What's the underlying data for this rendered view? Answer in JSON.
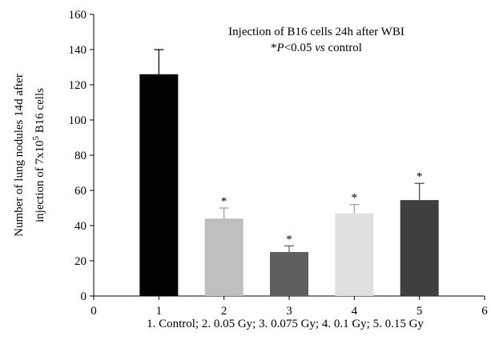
{
  "chart_data": {
    "type": "bar",
    "x": [
      1,
      2,
      3,
      4,
      5
    ],
    "values": [
      126,
      44,
      25,
      47,
      54.5
    ],
    "errors": [
      14,
      6,
      3.5,
      5,
      9.5
    ],
    "markers": [
      null,
      "*",
      "*",
      "*",
      "*"
    ],
    "colors": [
      "#000000",
      "#bfbfbf",
      "#5f5f5f",
      "#e0e0e0",
      "#3f3f3f"
    ],
    "xlim": [
      0,
      6
    ],
    "xticks": [
      0,
      1,
      2,
      3,
      4,
      5,
      6
    ],
    "ylim": [
      0,
      160
    ],
    "yticks": [
      0,
      20,
      40,
      60,
      80,
      100,
      120,
      140,
      160
    ],
    "xlabel": "1. Control; 2. 0.05 Gy; 3. 0.075 Gy; 4. 0.1 Gy; 5. 0.15 Gy",
    "ylabel": {
      "line1": "Number of lung nodules 14d after",
      "line2": "injection of 7x10",
      "superscript": "5",
      "line2_end": " B16 cells"
    },
    "annotation": {
      "line1": "Injection of B16 cells 24h after WBI",
      "line2": [
        {
          "text": "*"
        },
        {
          "text": "P",
          "italic": true
        },
        {
          "text": "<0.05 "
        },
        {
          "text": "vs",
          "italic": true
        },
        {
          "text": " control"
        }
      ]
    }
  }
}
